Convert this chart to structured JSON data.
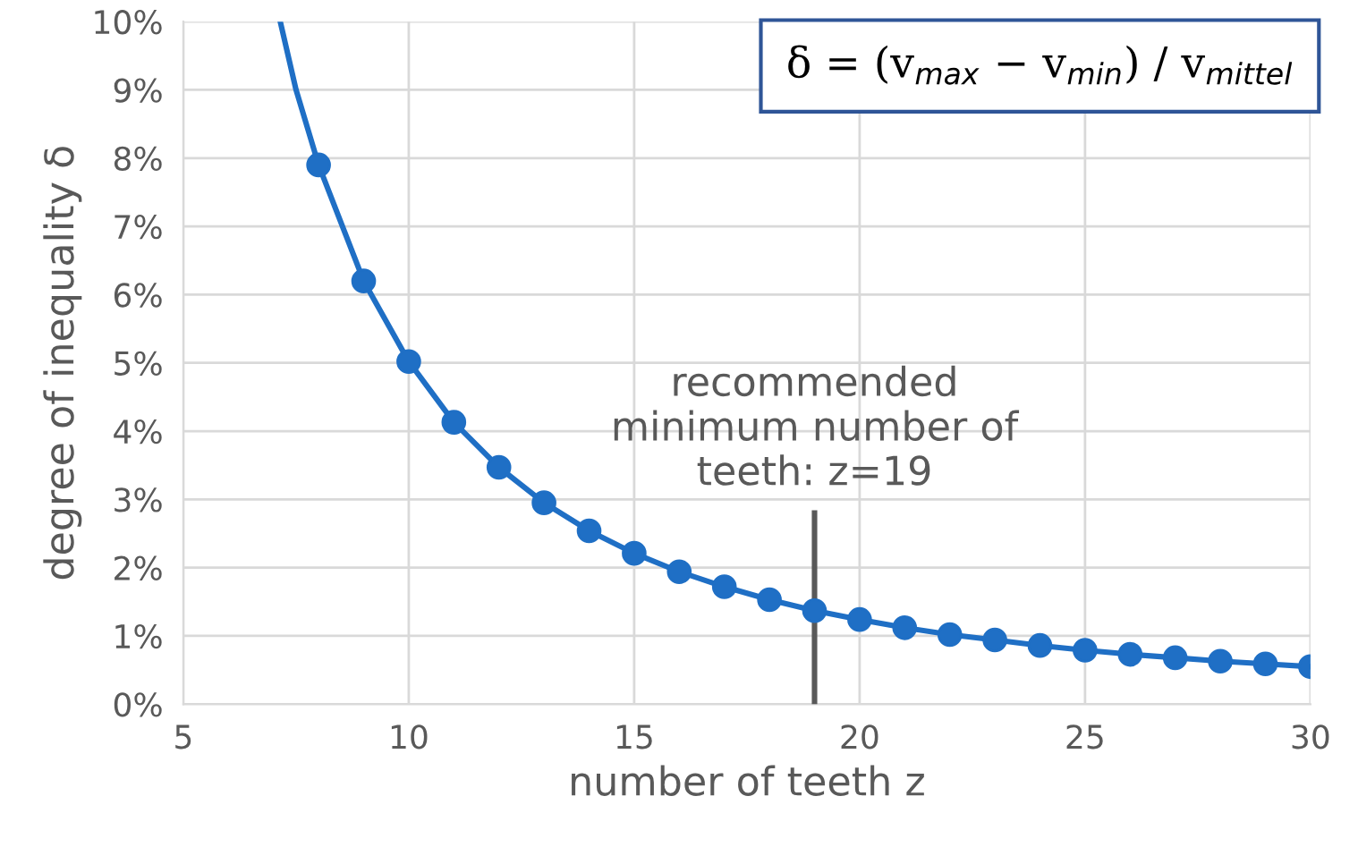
{
  "chart_data": {
    "type": "line",
    "xlabel": "number of teeth z",
    "ylabel": "degree of inequality δ",
    "xlim": [
      5,
      30
    ],
    "xticks": [
      5,
      10,
      15,
      20,
      25,
      30
    ],
    "ylim": [
      0,
      10
    ],
    "yticks": [
      {
        "value": 0,
        "label": "0%"
      },
      {
        "value": 1,
        "label": "1%"
      },
      {
        "value": 2,
        "label": "2%"
      },
      {
        "value": 3,
        "label": "3%"
      },
      {
        "value": 4,
        "label": "4%"
      },
      {
        "value": 5,
        "label": "5%"
      },
      {
        "value": 6,
        "label": "6%"
      },
      {
        "value": 7,
        "label": "7%"
      },
      {
        "value": 8,
        "label": "8%"
      },
      {
        "value": 9,
        "label": "9%"
      },
      {
        "value": 10,
        "label": "10%"
      }
    ],
    "grid": true,
    "legend": false,
    "series": [
      {
        "color": "#1f6fc5",
        "marker": "none",
        "x": [
          7.15,
          7.5,
          8,
          9,
          10,
          11,
          12,
          13,
          14,
          15,
          16,
          17,
          18,
          19,
          20,
          21,
          22,
          23,
          24,
          25,
          26,
          27,
          28,
          29,
          30
        ],
        "values": [
          10.0,
          9.0,
          7.9,
          6.2,
          5.02,
          4.13,
          3.47,
          2.95,
          2.54,
          2.21,
          1.94,
          1.72,
          1.53,
          1.37,
          1.24,
          1.12,
          1.02,
          0.94,
          0.86,
          0.79,
          0.73,
          0.68,
          0.63,
          0.59,
          0.55
        ]
      },
      {
        "type": "scatter",
        "color": "#1f6fc5",
        "marker": "circle",
        "x": [
          8,
          9,
          10,
          11,
          12,
          13,
          14,
          15,
          16,
          17,
          18,
          19,
          20,
          21,
          22,
          23,
          24,
          25,
          26,
          27,
          28,
          29,
          30
        ],
        "values": [
          7.9,
          6.2,
          5.02,
          4.13,
          3.47,
          2.95,
          2.54,
          2.21,
          1.94,
          1.72,
          1.53,
          1.37,
          1.24,
          1.12,
          1.02,
          0.94,
          0.86,
          0.79,
          0.73,
          0.68,
          0.63,
          0.59,
          0.55
        ]
      },
      {
        "color": "#595959",
        "marker": "none",
        "x": [
          19,
          19
        ],
        "values": [
          0,
          2.8
        ]
      }
    ],
    "annotations": [
      {
        "text": "recommended\nminimum number of\nteeth: z=19",
        "x": 19,
        "y": 2.8
      },
      "δ = (v$_{max}$ − v$_{min}$) / v$_{mittel}$"
    ]
  }
}
